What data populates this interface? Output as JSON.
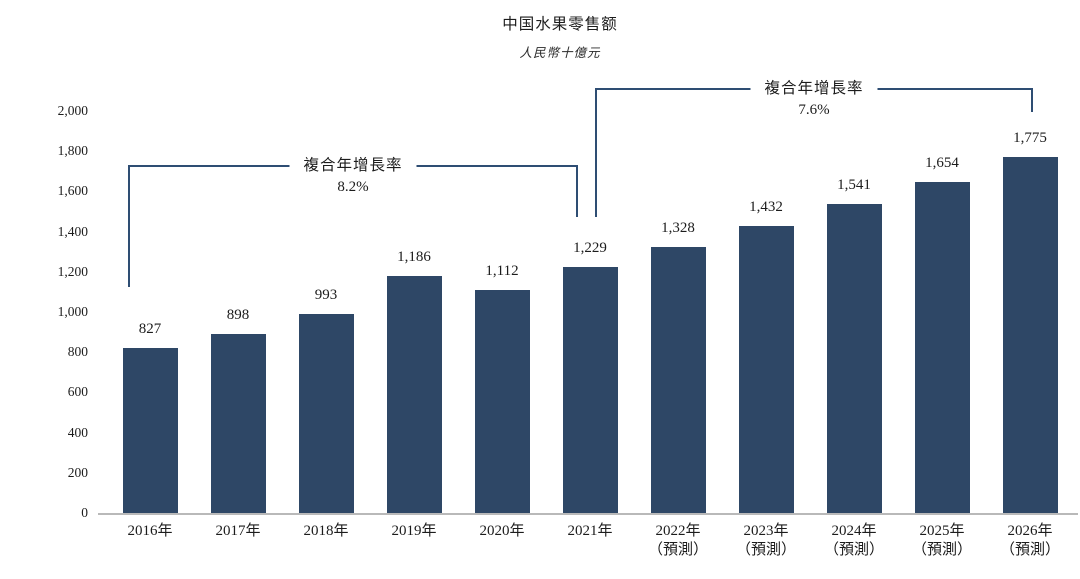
{
  "chart_data": {
    "type": "bar",
    "title": "中国水果零售额",
    "unit_label": "人民幣十億元",
    "categories": [
      "2016年",
      "2017年",
      "2018年",
      "2019年",
      "2020年",
      "2021年",
      "2022年",
      "2023年",
      "2024年",
      "2025年",
      "2026年"
    ],
    "category_notes": [
      "",
      "",
      "",
      "",
      "",
      "",
      "（預測）",
      "（預測）",
      "（預測）",
      "（預測）",
      "（預測）"
    ],
    "values": [
      827,
      898,
      993,
      1186,
      1112,
      1229,
      1328,
      1432,
      1541,
      1654,
      1775
    ],
    "value_labels": [
      "827",
      "898",
      "993",
      "1,186",
      "1,112",
      "1,229",
      "1,328",
      "1,432",
      "1,541",
      "1,654",
      "1,775"
    ],
    "y_tick_labels": [
      "0",
      "200",
      "400",
      "600",
      "800",
      "1,000",
      "1,200",
      "1,400",
      "1,600",
      "1,800",
      "2,000"
    ],
    "y_tick_values": [
      0,
      200,
      400,
      600,
      800,
      1000,
      1200,
      1400,
      1600,
      1800,
      2000
    ],
    "ylim": [
      0,
      2000
    ],
    "grid": false,
    "legend": "none",
    "bar_color": "#2e4766",
    "bracket_line_color": "#2e4d73",
    "text_color": "#1c1c1c",
    "annotations": [
      {
        "label": "複合年增長率",
        "value": "8.2%",
        "from_category": "2016年",
        "to_category": "2021年"
      },
      {
        "label": "複合年增長率",
        "value": "7.6%",
        "from_category": "2021年",
        "to_category": "2026年"
      }
    ]
  }
}
